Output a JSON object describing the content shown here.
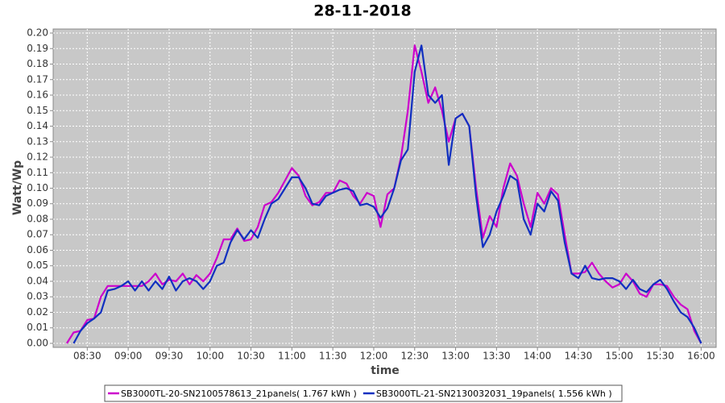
{
  "chart_data": {
    "type": "line",
    "title": "28-11-2018",
    "x_label": "time",
    "y_label": "Watt/Wp",
    "x": [
      "08:15",
      "08:20",
      "08:25",
      "08:30",
      "08:35",
      "08:40",
      "08:45",
      "08:50",
      "08:55",
      "09:00",
      "09:05",
      "09:10",
      "09:15",
      "09:20",
      "09:25",
      "09:30",
      "09:35",
      "09:40",
      "09:45",
      "09:50",
      "09:55",
      "10:00",
      "10:05",
      "10:10",
      "10:15",
      "10:20",
      "10:25",
      "10:30",
      "10:35",
      "10:40",
      "10:45",
      "10:50",
      "10:55",
      "11:00",
      "11:05",
      "11:10",
      "11:15",
      "11:20",
      "11:25",
      "11:30",
      "11:35",
      "11:40",
      "11:45",
      "11:50",
      "11:55",
      "12:00",
      "12:05",
      "12:10",
      "12:15",
      "12:20",
      "12:25",
      "12:30",
      "12:35",
      "12:40",
      "12:45",
      "12:50",
      "12:55",
      "13:00",
      "13:05",
      "13:10",
      "13:15",
      "13:20",
      "13:25",
      "13:30",
      "13:35",
      "13:40",
      "13:45",
      "13:50",
      "13:55",
      "14:00",
      "14:05",
      "14:10",
      "14:15",
      "14:20",
      "14:25",
      "14:30",
      "14:35",
      "14:40",
      "14:45",
      "14:50",
      "14:55",
      "15:00",
      "15:05",
      "15:10",
      "15:15",
      "15:20",
      "15:25",
      "15:30",
      "15:35",
      "15:40",
      "15:45",
      "15:50",
      "15:55",
      "16:00"
    ],
    "series": [
      {
        "name": "SB3000TL-20-SN2100578613_21panels( 1.767 kWh )",
        "color": "#cc00cc",
        "values": [
          0.0,
          0.007,
          0.008,
          0.015,
          0.016,
          0.03,
          0.037,
          0.037,
          0.037,
          0.037,
          0.037,
          0.037,
          0.04,
          0.045,
          0.038,
          0.041,
          0.04,
          0.045,
          0.038,
          0.044,
          0.04,
          0.045,
          0.055,
          0.067,
          0.067,
          0.074,
          0.066,
          0.067,
          0.075,
          0.089,
          0.091,
          0.097,
          0.105,
          0.113,
          0.108,
          0.095,
          0.089,
          0.091,
          0.097,
          0.097,
          0.105,
          0.103,
          0.095,
          0.09,
          0.097,
          0.095,
          0.075,
          0.096,
          0.1,
          0.12,
          0.15,
          0.192,
          0.175,
          0.155,
          0.165,
          0.15,
          0.13,
          0.145,
          0.148,
          0.14,
          0.1,
          0.068,
          0.082,
          0.075,
          0.1,
          0.116,
          0.108,
          0.09,
          0.075,
          0.097,
          0.09,
          0.1,
          0.096,
          0.07,
          0.045,
          0.045,
          0.046,
          0.052,
          0.045,
          0.04,
          0.036,
          0.038,
          0.045,
          0.04,
          0.032,
          0.03,
          0.038,
          0.038,
          0.037,
          0.03,
          0.025,
          0.022,
          0.008,
          0.0
        ]
      },
      {
        "name": "SB3000TL-21-SN2130032031_19panels( 1.556 kWh )",
        "color": "#1030c0",
        "values": [
          null,
          0.0,
          0.008,
          0.013,
          0.016,
          0.02,
          0.034,
          0.035,
          0.037,
          0.04,
          0.034,
          0.04,
          0.034,
          0.04,
          0.035,
          0.043,
          0.034,
          0.04,
          0.042,
          0.04,
          0.035,
          0.04,
          0.05,
          0.052,
          0.065,
          0.073,
          0.067,
          0.073,
          0.068,
          0.08,
          0.09,
          0.093,
          0.1,
          0.107,
          0.107,
          0.1,
          0.09,
          0.089,
          0.095,
          0.097,
          0.099,
          0.1,
          0.098,
          0.089,
          0.09,
          0.088,
          0.081,
          0.087,
          0.1,
          0.118,
          0.125,
          0.175,
          0.192,
          0.16,
          0.155,
          0.16,
          0.115,
          0.145,
          0.148,
          0.14,
          0.095,
          0.062,
          0.07,
          0.085,
          0.095,
          0.108,
          0.105,
          0.08,
          0.07,
          0.09,
          0.085,
          0.098,
          0.092,
          0.065,
          0.045,
          0.042,
          0.05,
          0.042,
          0.041,
          0.042,
          0.042,
          0.04,
          0.035,
          0.041,
          0.035,
          0.033,
          0.038,
          0.041,
          0.035,
          0.027,
          0.02,
          0.017,
          0.01,
          0.0
        ]
      }
    ],
    "xlim": [
      "08:05",
      "16:11"
    ],
    "xticks": [
      "08:30",
      "09:00",
      "09:30",
      "10:00",
      "10:30",
      "11:00",
      "11:30",
      "12:00",
      "12:30",
      "13:00",
      "13:30",
      "14:00",
      "14:30",
      "15:00",
      "15:30",
      "16:00"
    ],
    "ylim": [
      -0.0026,
      0.2026
    ],
    "yticks": [
      {
        "value": 0,
        "label": "0.00"
      },
      {
        "value": 0.01,
        "label": "0.01"
      },
      {
        "value": 0.02,
        "label": "0.02"
      },
      {
        "value": 0.03,
        "label": "0.03"
      },
      {
        "value": 0.04,
        "label": "0.04"
      },
      {
        "value": 0.05,
        "label": "0.05"
      },
      {
        "value": 0.06,
        "label": "0.06"
      },
      {
        "value": 0.07,
        "label": "0.07"
      },
      {
        "value": 0.08,
        "label": "0.08"
      },
      {
        "value": 0.09,
        "label": "0.09"
      },
      {
        "value": 0.1,
        "label": "0.10"
      },
      {
        "value": 0.11,
        "label": "0.11"
      },
      {
        "value": 0.12,
        "label": "0.12"
      },
      {
        "value": 0.13,
        "label": "0.13"
      },
      {
        "value": 0.14,
        "label": "0.14"
      },
      {
        "value": 0.15,
        "label": "0.15"
      },
      {
        "value": 0.16,
        "label": "0.16"
      },
      {
        "value": 0.17,
        "label": "0.17"
      },
      {
        "value": 0.18,
        "label": "0.18"
      },
      {
        "value": 0.19,
        "label": "0.19"
      },
      {
        "value": 0.2,
        "label": "0.20"
      }
    ],
    "grid": true
  }
}
